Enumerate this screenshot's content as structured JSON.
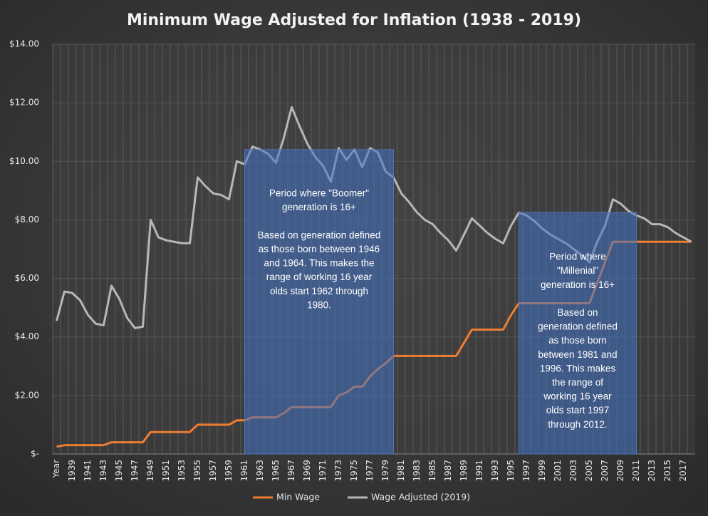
{
  "chart_data": {
    "type": "line",
    "title": "Minimum Wage Adjusted for Inflation (1938 - 2019)",
    "categories": [
      "Year",
      null,
      "1939",
      null,
      "1941",
      null,
      "1943",
      null,
      "1945",
      null,
      "1947",
      null,
      "1949",
      null,
      "1951",
      null,
      "1953",
      null,
      "1955",
      null,
      "1957",
      null,
      "1959",
      null,
      "1961",
      null,
      "1963",
      null,
      "1965",
      null,
      "1967",
      null,
      "1969",
      null,
      "1971",
      null,
      "1973",
      null,
      "1975",
      null,
      "1977",
      null,
      "1979",
      null,
      "1981",
      null,
      "1983",
      null,
      "1985",
      null,
      "1987",
      null,
      "1989",
      null,
      "1991",
      null,
      "1993",
      null,
      "1995",
      null,
      "1997",
      null,
      "1999",
      null,
      "2001",
      null,
      "2003",
      null,
      "2005",
      null,
      "2007",
      null,
      "2009",
      null,
      "2011",
      null,
      "2013",
      null,
      "2015",
      null,
      "2017",
      null
    ],
    "series": [
      {
        "name": "Min Wage",
        "color": "#ed7d31",
        "values": [
          0.25,
          0.3,
          0.3,
          0.3,
          0.3,
          0.3,
          0.3,
          0.4,
          0.4,
          0.4,
          0.4,
          0.4,
          0.75,
          0.75,
          0.75,
          0.75,
          0.75,
          0.75,
          1.0,
          1.0,
          1.0,
          1.0,
          1.0,
          1.15,
          1.15,
          1.25,
          1.25,
          1.25,
          1.25,
          1.4,
          1.6,
          1.6,
          1.6,
          1.6,
          1.6,
          1.6,
          2.0,
          2.1,
          2.3,
          2.3,
          2.65,
          2.9,
          3.1,
          3.35,
          3.35,
          3.35,
          3.35,
          3.35,
          3.35,
          3.35,
          3.35,
          3.35,
          3.8,
          4.25,
          4.25,
          4.25,
          4.25,
          4.25,
          4.75,
          5.15,
          5.15,
          5.15,
          5.15,
          5.15,
          5.15,
          5.15,
          5.15,
          5.15,
          5.15,
          5.85,
          6.55,
          7.25,
          7.25,
          7.25,
          7.25,
          7.25,
          7.25,
          7.25,
          7.25,
          7.25,
          7.25,
          7.25
        ]
      },
      {
        "name": "Wage Adjusted (2019)",
        "color": "#b7b7b7",
        "values": [
          4.55,
          5.55,
          5.5,
          5.25,
          4.75,
          4.45,
          4.4,
          5.75,
          5.3,
          4.65,
          4.3,
          4.35,
          8.0,
          7.4,
          7.3,
          7.25,
          7.2,
          7.2,
          9.45,
          9.15,
          8.9,
          8.85,
          8.7,
          10.0,
          9.9,
          10.5,
          10.4,
          10.25,
          9.95,
          10.8,
          11.85,
          11.2,
          10.6,
          10.15,
          9.85,
          9.3,
          10.45,
          10.05,
          10.4,
          9.8,
          10.45,
          10.3,
          9.65,
          9.45,
          8.9,
          8.6,
          8.25,
          8.0,
          7.85,
          7.55,
          7.3,
          6.95,
          7.5,
          8.05,
          7.8,
          7.55,
          7.35,
          7.2,
          7.8,
          8.25,
          8.15,
          7.95,
          7.7,
          7.5,
          7.35,
          7.2,
          7.0,
          6.8,
          6.55,
          7.25,
          7.8,
          8.7,
          8.55,
          8.3,
          8.15,
          8.05,
          7.85,
          7.85,
          7.75,
          7.55,
          7.4,
          7.25
        ]
      }
    ],
    "ylim": [
      0,
      14
    ],
    "yticks": [
      {
        "value": 0,
        "label": "$-"
      },
      {
        "value": 2,
        "label": "$2.00"
      },
      {
        "value": 4,
        "label": "$4.00"
      },
      {
        "value": 6,
        "label": "$6.00"
      },
      {
        "value": 8,
        "label": "$8.00"
      },
      {
        "value": 10,
        "label": "$10.00"
      },
      {
        "value": 12,
        "label": "$12.00"
      },
      {
        "value": 14,
        "label": "$14.00"
      }
    ],
    "grid": true,
    "legend": "bottom",
    "annotations": [
      {
        "from": 24,
        "to": 42,
        "paragraphs": [
          [
            "Period where \"Boomer\"",
            "generation is 16+"
          ],
          [
            "Based on generation defined",
            "as those born between 1946",
            "and 1964.  This makes the",
            "range of working 16 year",
            "olds start 1962 through",
            "1980."
          ]
        ]
      },
      {
        "from": 59,
        "to": 73,
        "paragraphs": [
          [
            "Period where",
            "\"Millenial\"",
            "generation is 16+"
          ],
          [
            "Based on",
            "generation defined",
            "as those born",
            "between 1981 and",
            "1996.  This makes",
            "the range of",
            "working 16 year",
            "olds start 1997",
            "through 2012."
          ]
        ]
      }
    ]
  }
}
